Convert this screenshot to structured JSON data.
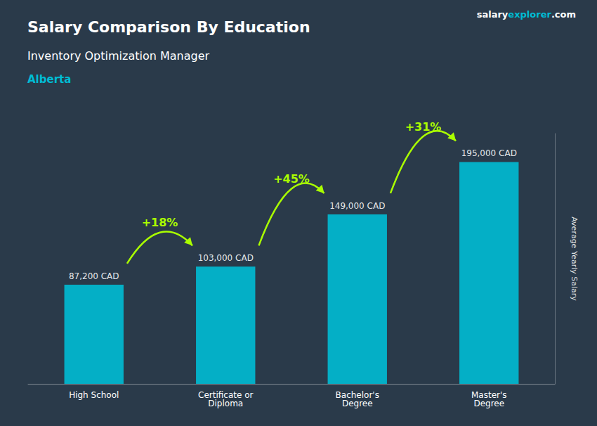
{
  "chart_data": {
    "type": "bar",
    "title": "Salary Comparison By Education",
    "subtitle": "Inventory Optimization Manager",
    "ylabel": "Average Yearly Salary",
    "categories": [
      "High School",
      "Certificate or\nDiploma",
      "Bachelor's\nDegree",
      "Master's\nDegree"
    ],
    "values": [
      87200,
      103000,
      149000,
      195000
    ],
    "value_labels": [
      "87,200 CAD",
      "103,000 CAD",
      "149,000 CAD",
      "195,000 CAD"
    ],
    "data_labels": true,
    "color": "#00bcd4",
    "ylim": [
      0,
      220000
    ],
    "grid": false,
    "tick_labels": "x",
    "annotations": {
      "region": {
        "text": "Alberta",
        "color": "#00bcd4"
      },
      "brand": [
        {
          "text": "salary",
          "color": "#ffffff"
        },
        {
          "text": "explorer",
          "color": "#00bcd4"
        },
        {
          "text": ".com",
          "color": "#ffffff"
        }
      ],
      "changes": {
        "labels": [
          "+18%",
          "+45%",
          "+31%"
        ],
        "color": "#aaff00"
      }
    }
  }
}
